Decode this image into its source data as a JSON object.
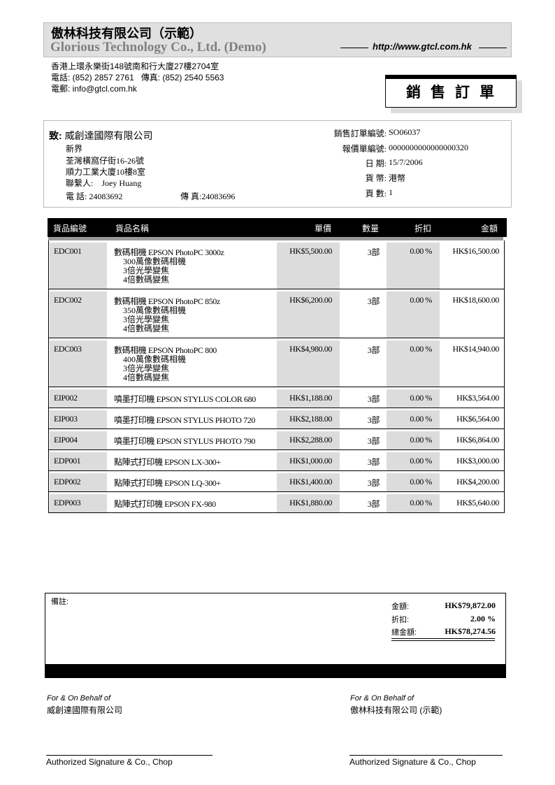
{
  "company": {
    "name_zh": "傲林科技有限公司（示範）",
    "name_en": "Glorious Technology Co., Ltd. (Demo)",
    "url": "http://www.gtcl.com.hk",
    "address": "香港上環永樂街148號南和行大廈27樓2704室",
    "phone_fax": "電話: (852) 2857 2761   傳真: (852) 2540 5563",
    "email": "電郵: info@gtcl.com.hk"
  },
  "doc_title": "銷售訂單",
  "customer": {
    "to_label": "致:",
    "name": "威創達國際有限公司",
    "addr1": "新界",
    "addr2": "荃灣橫窩仔街16-26號",
    "addr3": "順力工業大廈10樓8室",
    "contact_label": "聯繫人:",
    "contact": "Joey Huang",
    "phone_label": "電 話:",
    "phone": "24083692",
    "fax_label": "傳 真:",
    "fax": "24083696"
  },
  "order": {
    "so_label": "銷售訂單編號:",
    "so": "SO06037",
    "quote_label": "報價單編號:",
    "quote": "0000000000000000320",
    "date_label": "日 期:",
    "date": "15/7/2006",
    "currency_label": "貨 幣:",
    "currency": "港幣",
    "page_label": "頁 數:",
    "page": "1"
  },
  "table": {
    "headers": [
      "貨品編號",
      "貨品名稱",
      "單價",
      "數量",
      "折扣",
      "金額"
    ],
    "rows": [
      {
        "code": "EDC001",
        "name": "數碼相機 EPSON PhotoPC 3000z",
        "details": [
          "300萬像數碼相機",
          "3倍光學變焦",
          "4倍數碼變焦"
        ],
        "price": "HK$5,500.00",
        "qty": "3部",
        "discount": "0.00 %",
        "amount": "HK$16,500.00"
      },
      {
        "code": "EDC002",
        "name": "數碼相機 EPSON PhotoPC 850z",
        "details": [
          "350萬像數碼相機",
          "3倍光學變焦",
          "4倍數碼變焦"
        ],
        "price": "HK$6,200.00",
        "qty": "3部",
        "discount": "0.00 %",
        "amount": "HK$18,600.00"
      },
      {
        "code": "EDC003",
        "name": "數碼相機 EPSON PhotoPC 800",
        "details": [
          "400萬像數碼相機",
          "3倍光學變焦",
          "4倍數碼變焦"
        ],
        "price": "HK$4,980.00",
        "qty": "3部",
        "discount": "0.00 %",
        "amount": "HK$14,940.00"
      },
      {
        "code": "EIP002",
        "name": "噴墨打印機 EPSON STYLUS COLOR 680",
        "details": [],
        "price": "HK$1,188.00",
        "qty": "3部",
        "discount": "0.00 %",
        "amount": "HK$3,564.00"
      },
      {
        "code": "EIP003",
        "name": "噴墨打印機 EPSON STYLUS PHOTO 720",
        "details": [],
        "price": "HK$2,188.00",
        "qty": "3部",
        "discount": "0.00 %",
        "amount": "HK$6,564.00"
      },
      {
        "code": "EIP004",
        "name": "噴墨打印機 EPSON STYLUS PHOTO 790",
        "details": [],
        "price": "HK$2,288.00",
        "qty": "3部",
        "discount": "0.00 %",
        "amount": "HK$6,864.00"
      },
      {
        "code": "EDP001",
        "name": "點陣式打印機 EPSON LX-300+",
        "details": [],
        "price": "HK$1,000.00",
        "qty": "3部",
        "discount": "0.00 %",
        "amount": "HK$3,000.00"
      },
      {
        "code": "EDP002",
        "name": "點陣式打印機 EPSON LQ-300+",
        "details": [],
        "price": "HK$1,400.00",
        "qty": "3部",
        "discount": "0.00 %",
        "amount": "HK$4,200.00"
      },
      {
        "code": "EDP003",
        "name": "點陣式打印機 EPSON FX-980",
        "details": [],
        "price": "HK$1,880.00",
        "qty": "3部",
        "discount": "0.00 %",
        "amount": "HK$5,640.00"
      }
    ]
  },
  "summary": {
    "remarks_label": "備註:",
    "subtotal_label": "金額:",
    "subtotal": "HK$79,872.00",
    "discount_label": "折扣:",
    "discount": "2.00 %",
    "total_label": "總金額:",
    "total": "HK$78,274.56"
  },
  "signatures": {
    "left": {
      "behalf": "For & On Behalf of",
      "name": "威創達國際有限公司",
      "caption": "Authorized Signature & Co., Chop"
    },
    "right": {
      "behalf": "For & On Behalf of",
      "name": "傲林科技有限公司 (示範)",
      "caption": "Authorized Signature & Co., Chop"
    }
  }
}
